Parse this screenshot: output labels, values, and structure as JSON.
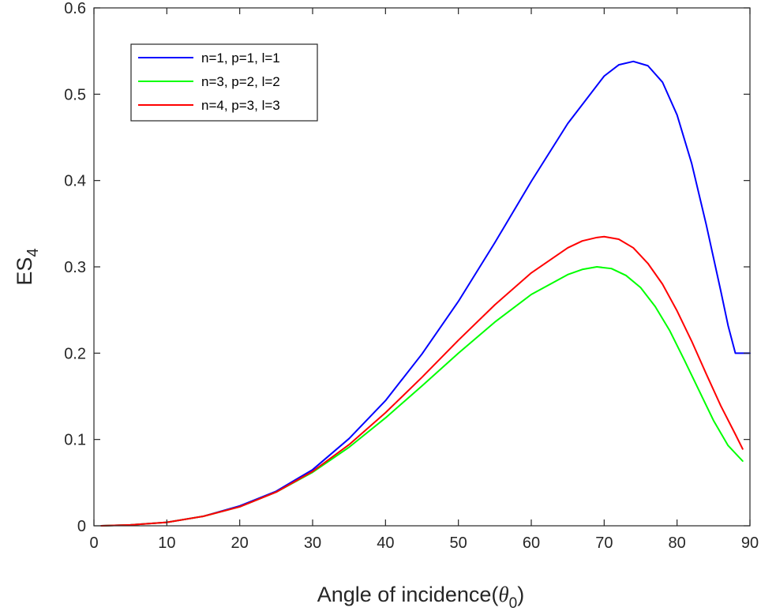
{
  "chart_data": {
    "type": "line",
    "title": "",
    "xlabel": {
      "prefix": "Angle of incidence(",
      "symbol": "θ",
      "subscript": "0",
      "suffix": ")"
    },
    "ylabel": {
      "main": "ES",
      "subscript": "4"
    },
    "xlim": [
      0,
      90
    ],
    "ylim": [
      0,
      0.6
    ],
    "xticks": [
      0,
      10,
      20,
      30,
      40,
      50,
      60,
      70,
      80,
      90
    ],
    "xtick_labels": [
      "0",
      "10",
      "20",
      "30",
      "40",
      "50",
      "60",
      "70",
      "80",
      "90"
    ],
    "yticks": [
      0,
      0.1,
      0.2,
      0.3,
      0.4,
      0.5,
      0.6
    ],
    "ytick_labels": [
      "0",
      "0.1",
      "0.2",
      "0.3",
      "0.4",
      "0.5",
      "0.6"
    ],
    "grid": false,
    "legend_position": "top-left",
    "series": [
      {
        "name": "n=1, p=1, l=1",
        "color": "#0000ff",
        "x": [
          1,
          5,
          10,
          15,
          20,
          25,
          30,
          35,
          40,
          45,
          50,
          55,
          60,
          65,
          70,
          72,
          74,
          76,
          78,
          80,
          82,
          84,
          86,
          87,
          88,
          89,
          90
        ],
        "y": [
          0,
          0.001,
          0.004,
          0.011,
          0.023,
          0.04,
          0.065,
          0.101,
          0.145,
          0.199,
          0.26,
          0.328,
          0.399,
          0.466,
          0.521,
          0.534,
          0.538,
          0.533,
          0.514,
          0.476,
          0.42,
          0.349,
          0.272,
          0.232,
          0.2,
          0.2,
          0.2
        ]
      },
      {
        "name": "n=3, p=2, l=2",
        "color": "#00ff00",
        "x": [
          1,
          5,
          10,
          15,
          20,
          25,
          30,
          35,
          40,
          45,
          50,
          55,
          60,
          65,
          67,
          69,
          71,
          73,
          75,
          77,
          79,
          81,
          83,
          85,
          87,
          89
        ],
        "y": [
          0,
          0.001,
          0.004,
          0.011,
          0.022,
          0.039,
          0.062,
          0.091,
          0.125,
          0.162,
          0.2,
          0.236,
          0.268,
          0.291,
          0.297,
          0.3,
          0.298,
          0.29,
          0.276,
          0.254,
          0.226,
          0.192,
          0.157,
          0.122,
          0.093,
          0.075
        ]
      },
      {
        "name": "n=4, p=3, l=3",
        "color": "#ff0000",
        "x": [
          1,
          5,
          10,
          15,
          20,
          25,
          30,
          35,
          40,
          45,
          50,
          55,
          60,
          65,
          67,
          69,
          70,
          72,
          74,
          76,
          78,
          80,
          82,
          84,
          86,
          88,
          89
        ],
        "y": [
          0,
          0.001,
          0.004,
          0.011,
          0.022,
          0.039,
          0.063,
          0.094,
          0.131,
          0.172,
          0.215,
          0.256,
          0.293,
          0.322,
          0.33,
          0.334,
          0.335,
          0.332,
          0.322,
          0.304,
          0.28,
          0.249,
          0.214,
          0.176,
          0.139,
          0.106,
          0.089
        ]
      }
    ]
  }
}
